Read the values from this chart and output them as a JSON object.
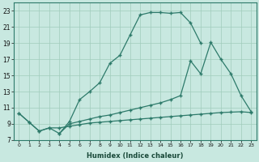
{
  "xlabel": "Humidex (Indice chaleur)",
  "bg_color": "#c8e8e0",
  "line_color": "#2d7a6a",
  "grid_color": "#a0ccbc",
  "xlim": [
    -0.5,
    23.5
  ],
  "ylim": [
    7,
    24
  ],
  "xticks": [
    0,
    1,
    2,
    3,
    4,
    5,
    6,
    7,
    8,
    9,
    10,
    11,
    12,
    13,
    14,
    15,
    16,
    17,
    18,
    19,
    20,
    21,
    22,
    23
  ],
  "yticks": [
    7,
    9,
    11,
    13,
    15,
    17,
    19,
    21,
    23
  ],
  "line1_x": [
    0,
    1,
    2,
    3,
    4,
    5,
    6,
    7,
    8,
    9,
    10,
    11,
    12,
    13,
    14,
    15,
    16,
    17,
    18
  ],
  "line1_y": [
    10.3,
    9.2,
    8.1,
    8.5,
    7.8,
    9.3,
    12.0,
    13.0,
    14.1,
    16.5,
    17.5,
    20.0,
    22.5,
    22.8,
    22.8,
    22.7,
    22.8,
    21.5,
    19.0
  ],
  "line2_x": [
    4,
    5,
    6,
    7,
    8,
    9,
    10,
    11,
    12,
    13,
    14,
    15,
    16,
    17,
    18,
    19,
    20,
    21,
    22,
    23
  ],
  "line2_y": [
    7.8,
    9.0,
    9.3,
    9.6,
    9.9,
    10.1,
    10.4,
    10.7,
    11.0,
    11.3,
    11.6,
    12.0,
    12.5,
    16.8,
    15.2,
    19.1,
    17.0,
    15.2,
    12.5,
    10.5
  ],
  "line3_x": [
    0,
    1,
    2,
    3,
    4,
    5,
    6,
    7,
    8,
    9,
    10,
    11,
    12,
    13,
    14,
    15,
    16,
    17,
    18,
    19,
    20,
    21,
    22,
    23
  ],
  "line3_y": [
    10.3,
    9.2,
    8.1,
    8.5,
    8.5,
    8.7,
    8.9,
    9.1,
    9.2,
    9.3,
    9.4,
    9.5,
    9.6,
    9.7,
    9.8,
    9.9,
    10.0,
    10.1,
    10.2,
    10.3,
    10.4,
    10.45,
    10.5,
    10.4
  ]
}
